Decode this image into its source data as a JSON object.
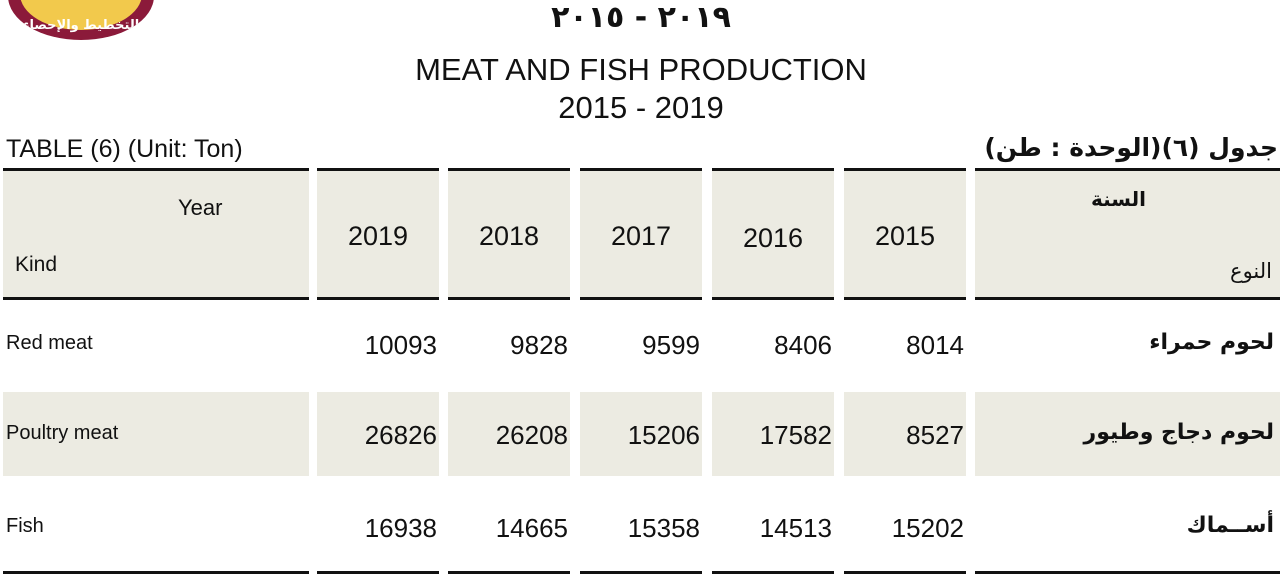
{
  "logo": {
    "text": "التخطيط والإحصاء"
  },
  "title": {
    "arabic_years": "٢٠١٩ - ٢٠١٥",
    "english": "MEAT AND FISH PRODUCTION",
    "english_years": "2015 - 2019"
  },
  "table_label": {
    "english": "TABLE (6) (Unit: Ton)",
    "arabic": "جدول (٦)(الوحدة : طن)"
  },
  "header": {
    "year_en": "Year",
    "kind_en": "Kind",
    "year_ar": "السنة",
    "kind_ar": "النوع",
    "years": [
      "2019",
      "2018",
      "2017",
      "2016",
      "2015"
    ]
  },
  "rows": [
    {
      "en": "Red meat",
      "ar": "لحوم حمراء",
      "values": [
        "10093",
        "9828",
        "9599",
        "8406",
        "8014"
      ]
    },
    {
      "en": "Poultry meat",
      "ar": "لحوم دجاج وطيور",
      "values": [
        "26826",
        "26208",
        "15206",
        "17582",
        "8527"
      ]
    },
    {
      "en": "Fish",
      "ar": "أســماك",
      "values": [
        "16938",
        "14665",
        "15358",
        "14513",
        "15202"
      ]
    }
  ]
}
